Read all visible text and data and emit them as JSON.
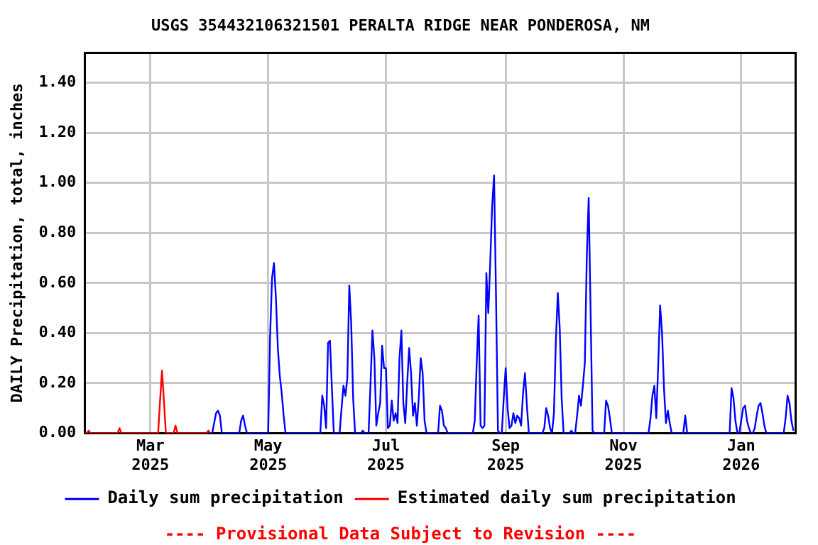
{
  "chart_data": {
    "type": "line",
    "title": "USGS 354432106321501 PERALTA RIDGE NEAR PONDEROSA, NM",
    "ylabel": "DAILY Precipitation, total, inches",
    "annotations": [
      "---- Provisional Data Subject to Revision ----"
    ],
    "xlim": [
      "2025-01-26",
      "2026-01-29"
    ],
    "xticks": [
      {
        "value": "2025-03-01",
        "label": "Mar 2025"
      },
      {
        "value": "2025-05-01",
        "label": "May 2025"
      },
      {
        "value": "2025-07-01",
        "label": "Jul 2025"
      },
      {
        "value": "2025-09-01",
        "label": "Sep 2025"
      },
      {
        "value": "2025-11-01",
        "label": "Nov 2025"
      },
      {
        "value": "2026-01-01",
        "label": "Jan 2026"
      }
    ],
    "ylim": [
      0,
      1.52
    ],
    "yticks": [
      {
        "value": 0,
        "label": "0.00"
      },
      {
        "value": 0.2,
        "label": "0.20"
      },
      {
        "value": 0.4,
        "label": "0.40"
      },
      {
        "value": 0.6,
        "label": "0.60"
      },
      {
        "value": 0.8,
        "label": "0.80"
      },
      {
        "value": 1,
        "label": "1.00"
      },
      {
        "value": 1.2,
        "label": "1.20"
      },
      {
        "value": 1.4,
        "label": "1.40"
      }
    ],
    "grid": true,
    "legend": "bottom",
    "marker": "none",
    "line_style": "solid",
    "series": [
      {
        "name": "Daily sum precipitation",
        "color": "#0000ff",
        "x": [
          "2025-04-01",
          "2025-04-02",
          "2025-04-03",
          "2025-04-04",
          "2025-04-05",
          "2025-04-06",
          "2025-04-07",
          "2025-04-16",
          "2025-04-17",
          "2025-04-18",
          "2025-04-19",
          "2025-04-20",
          "2025-05-01",
          "2025-05-02",
          "2025-05-03",
          "2025-05-04",
          "2025-05-05",
          "2025-05-06",
          "2025-05-07",
          "2025-05-08",
          "2025-05-09",
          "2025-05-10",
          "2025-05-28",
          "2025-05-29",
          "2025-05-30",
          "2025-05-31",
          "2025-06-01",
          "2025-06-02",
          "2025-06-03",
          "2025-06-04",
          "2025-06-07",
          "2025-06-08",
          "2025-06-09",
          "2025-06-10",
          "2025-06-11",
          "2025-06-12",
          "2025-06-13",
          "2025-06-14",
          "2025-06-15",
          "2025-06-18",
          "2025-06-19",
          "2025-06-20",
          "2025-06-22",
          "2025-06-23",
          "2025-06-24",
          "2025-06-25",
          "2025-06-26",
          "2025-06-27",
          "2025-06-28",
          "2025-06-29",
          "2025-06-30",
          "2025-07-01",
          "2025-07-02",
          "2025-07-03",
          "2025-07-04",
          "2025-07-05",
          "2025-07-06",
          "2025-07-07",
          "2025-07-08",
          "2025-07-09",
          "2025-07-10",
          "2025-07-11",
          "2025-07-12",
          "2025-07-13",
          "2025-07-14",
          "2025-07-15",
          "2025-07-16",
          "2025-07-17",
          "2025-07-18",
          "2025-07-19",
          "2025-07-20",
          "2025-07-21",
          "2025-07-22",
          "2025-07-28",
          "2025-07-29",
          "2025-07-30",
          "2025-07-31",
          "2025-08-01",
          "2025-08-02",
          "2025-08-15",
          "2025-08-16",
          "2025-08-17",
          "2025-08-18",
          "2025-08-19",
          "2025-08-20",
          "2025-08-21",
          "2025-08-22",
          "2025-08-23",
          "2025-08-24",
          "2025-08-25",
          "2025-08-26",
          "2025-08-27",
          "2025-08-28",
          "2025-08-29",
          "2025-08-30",
          "2025-08-31",
          "2025-09-01",
          "2025-09-02",
          "2025-09-03",
          "2025-09-04",
          "2025-09-05",
          "2025-09-06",
          "2025-09-07",
          "2025-09-08",
          "2025-09-09",
          "2025-09-10",
          "2025-09-11",
          "2025-09-12",
          "2025-09-13",
          "2025-09-20",
          "2025-09-21",
          "2025-09-22",
          "2025-09-23",
          "2025-09-24",
          "2025-09-25",
          "2025-09-26",
          "2025-09-27",
          "2025-09-28",
          "2025-09-29",
          "2025-09-30",
          "2025-10-01",
          "2025-10-04",
          "2025-10-05",
          "2025-10-06",
          "2025-10-07",
          "2025-10-08",
          "2025-10-09",
          "2025-10-10",
          "2025-10-11",
          "2025-10-12",
          "2025-10-13",
          "2025-10-14",
          "2025-10-15",
          "2025-10-16",
          "2025-10-17",
          "2025-10-22",
          "2025-10-23",
          "2025-10-24",
          "2025-10-25",
          "2025-10-26",
          "2025-11-14",
          "2025-11-15",
          "2025-11-16",
          "2025-11-17",
          "2025-11-18",
          "2025-11-19",
          "2025-11-20",
          "2025-11-21",
          "2025-11-22",
          "2025-11-23",
          "2025-11-24",
          "2025-11-25",
          "2025-11-26",
          "2025-12-02",
          "2025-12-03",
          "2025-12-04",
          "2025-12-26",
          "2025-12-27",
          "2025-12-28",
          "2025-12-29",
          "2025-12-30",
          "2025-12-31",
          "2026-01-01",
          "2026-01-02",
          "2026-01-03",
          "2026-01-04",
          "2026-01-05",
          "2026-01-06",
          "2026-01-07",
          "2026-01-08",
          "2026-01-09",
          "2026-01-10",
          "2026-01-11",
          "2026-01-12",
          "2026-01-13",
          "2026-01-14",
          "2026-01-23",
          "2026-01-24",
          "2026-01-25",
          "2026-01-26",
          "2026-01-27",
          "2026-01-28"
        ],
        "values": [
          0,
          0,
          0.04,
          0.08,
          0.09,
          0.07,
          0,
          0,
          0.05,
          0.07,
          0.03,
          0,
          0,
          0.39,
          0.62,
          0.68,
          0.54,
          0.34,
          0.23,
          0.16,
          0.07,
          0,
          0,
          0.15,
          0.11,
          0.02,
          0.36,
          0.37,
          0.18,
          0,
          0,
          0.1,
          0.19,
          0.15,
          0.22,
          0.59,
          0.44,
          0.14,
          0,
          0,
          0.01,
          0,
          0,
          0.2,
          0.41,
          0.3,
          0.03,
          0.08,
          0.12,
          0.35,
          0.26,
          0.26,
          0.02,
          0.03,
          0.13,
          0.05,
          0.08,
          0.04,
          0.3,
          0.41,
          0.12,
          0.04,
          0.2,
          0.34,
          0.24,
          0.07,
          0.12,
          0.03,
          0.14,
          0.3,
          0.24,
          0.05,
          0,
          0,
          0.11,
          0.09,
          0.03,
          0.02,
          0,
          0,
          0.05,
          0.28,
          0.47,
          0.03,
          0.02,
          0.03,
          0.64,
          0.48,
          0.68,
          0.91,
          1.03,
          0.55,
          0.01,
          0,
          0,
          0.14,
          0.26,
          0.1,
          0.02,
          0.03,
          0.08,
          0.04,
          0.07,
          0.06,
          0.03,
          0.16,
          0.24,
          0.11,
          0,
          0,
          0.02,
          0.1,
          0.07,
          0.02,
          0,
          0.08,
          0.37,
          0.56,
          0.42,
          0.14,
          0,
          0,
          0.01,
          0,
          0,
          0.07,
          0.15,
          0.11,
          0.19,
          0.28,
          0.7,
          0.94,
          0.48,
          0.01,
          0,
          0,
          0.13,
          0.11,
          0.06,
          0,
          0,
          0.06,
          0.15,
          0.19,
          0.06,
          0.27,
          0.51,
          0.4,
          0.18,
          0.04,
          0.09,
          0.04,
          0,
          0,
          0.07,
          0,
          0,
          0.18,
          0.14,
          0.05,
          0,
          0,
          0.05,
          0.1,
          0.11,
          0.05,
          0.02,
          0,
          0,
          0.02,
          0.07,
          0.11,
          0.12,
          0.08,
          0.03,
          0,
          0,
          0.06,
          0.15,
          0.12,
          0.05,
          0.01
        ]
      },
      {
        "name": "Estimated daily sum precipitation",
        "color": "#ff0000",
        "x": [
          "2025-01-26",
          "2025-01-27",
          "2025-01-28",
          "2025-01-29",
          "2025-02-12",
          "2025-02-13",
          "2025-02-14",
          "2025-03-05",
          "2025-03-06",
          "2025-03-07",
          "2025-03-08",
          "2025-03-09",
          "2025-03-13",
          "2025-03-14",
          "2025-03-15",
          "2025-03-30",
          "2025-03-31",
          "2025-04-01"
        ],
        "values": [
          0,
          0,
          0.01,
          0,
          0,
          0.02,
          0,
          0,
          0.13,
          0.25,
          0.13,
          0,
          0,
          0.03,
          0,
          0,
          0.01,
          0
        ]
      }
    ]
  }
}
